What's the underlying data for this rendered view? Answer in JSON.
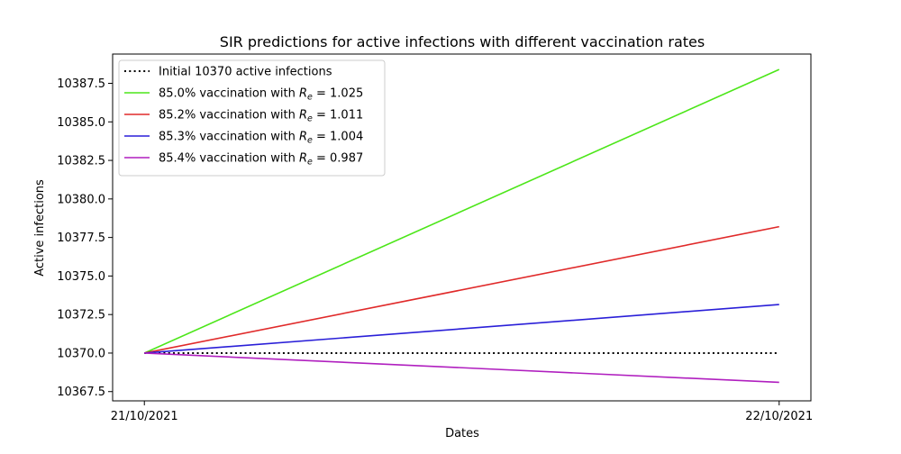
{
  "chart_data": {
    "type": "line",
    "title": "SIR predictions for active infections with different vaccination rates",
    "xlabel": "Dates",
    "ylabel": "Active infections",
    "x": [
      "21/10/2021",
      "22/10/2021"
    ],
    "xlim": [
      -0.05,
      1.05
    ],
    "ylim": [
      10366.9,
      10389.4
    ],
    "yticks": [
      10367.5,
      10370.0,
      10372.5,
      10375.0,
      10377.5,
      10380.0,
      10382.5,
      10385.0,
      10387.5
    ],
    "ytick_labels": [
      "10367.5",
      "10370.0",
      "10372.5",
      "10375.0",
      "10377.5",
      "10380.0",
      "10382.5",
      "10385.0",
      "10387.5"
    ],
    "grid": false,
    "legend_position": "top-left",
    "series": [
      {
        "name_plain": "Initial 10370 active infections",
        "values": [
          10370.0,
          10370.0
        ],
        "color": "#000000",
        "style": "dotted"
      },
      {
        "name_prefix": "85.0% vaccination with ",
        "name_sym": "R",
        "name_sub": "e",
        "name_suffix": " = 1.025",
        "values": [
          10370.0,
          10388.4
        ],
        "color": "#4ce619",
        "style": "solid"
      },
      {
        "name_prefix": "85.2% vaccination with ",
        "name_sym": "R",
        "name_sub": "e",
        "name_suffix": " = 1.011",
        "values": [
          10370.0,
          10378.2
        ],
        "color": "#e02a2a",
        "style": "solid"
      },
      {
        "name_prefix": "85.3% vaccination with ",
        "name_sym": "R",
        "name_sub": "e",
        "name_suffix": " = 1.004",
        "values": [
          10370.0,
          10373.15
        ],
        "color": "#2a1fd8",
        "style": "solid"
      },
      {
        "name_prefix": "85.4% vaccination with ",
        "name_sym": "R",
        "name_sub": "e",
        "name_suffix": " = 0.987",
        "values": [
          10370.0,
          10368.1
        ],
        "color": "#b01fbf",
        "style": "solid"
      }
    ]
  }
}
